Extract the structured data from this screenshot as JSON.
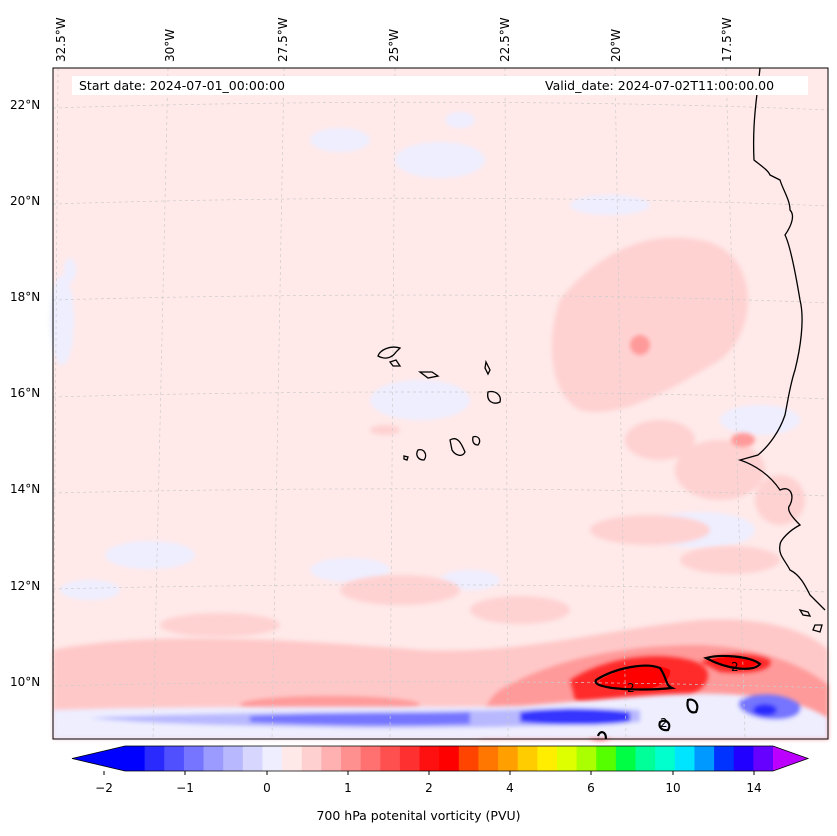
{
  "header": {
    "start_date": "Start date: 2024-07-01_00:00:00",
    "valid_date": "Valid_date: 2024-07-02T11:00:00.00"
  },
  "axes": {
    "longitude_labels": [
      "32.5°W",
      "30°W",
      "27.5°W",
      "25°W",
      "22.5°W",
      "20°W",
      "17.5°W"
    ],
    "latitude_labels": [
      "22°N",
      "20°N",
      "18°N",
      "16°N",
      "14°N",
      "12°N",
      "10°N"
    ]
  },
  "colorbar": {
    "title": "700 hPa potenital vorticity (PVU)",
    "tick_labels": [
      "−2",
      "−1",
      "0",
      "1",
      "2",
      "4",
      "6",
      "10",
      "14"
    ],
    "colors": [
      "#0000ff",
      "#2a2aff",
      "#5050ff",
      "#7575ff",
      "#9a9aff",
      "#b8b8ff",
      "#d6d6ff",
      "#eeeeff",
      "#ffe8e8",
      "#ffd0d0",
      "#ffb0b0",
      "#ff9090",
      "#ff7070",
      "#ff5050",
      "#ff3030",
      "#ff1010",
      "#ff0000",
      "#ff4400",
      "#ff7700",
      "#ffa000",
      "#ffcc00",
      "#ffee00",
      "#ddff00",
      "#aaff00",
      "#55ff00",
      "#00ff44",
      "#00ff99",
      "#00ffcc",
      "#00e5ff",
      "#0099ff",
      "#0033ff",
      "#2200ff",
      "#6600ff"
    ],
    "under_color": "#0000ff",
    "over_color": "#bb00ff"
  },
  "contour_labels": [
    "2",
    "2",
    "2"
  ],
  "colors": {
    "background_field": "#ffe9e9",
    "light_blue": "#eeeeff",
    "mid_blue": "#9a9aff",
    "deep_blue": "#2a2aff",
    "red": "#ff0000"
  }
}
